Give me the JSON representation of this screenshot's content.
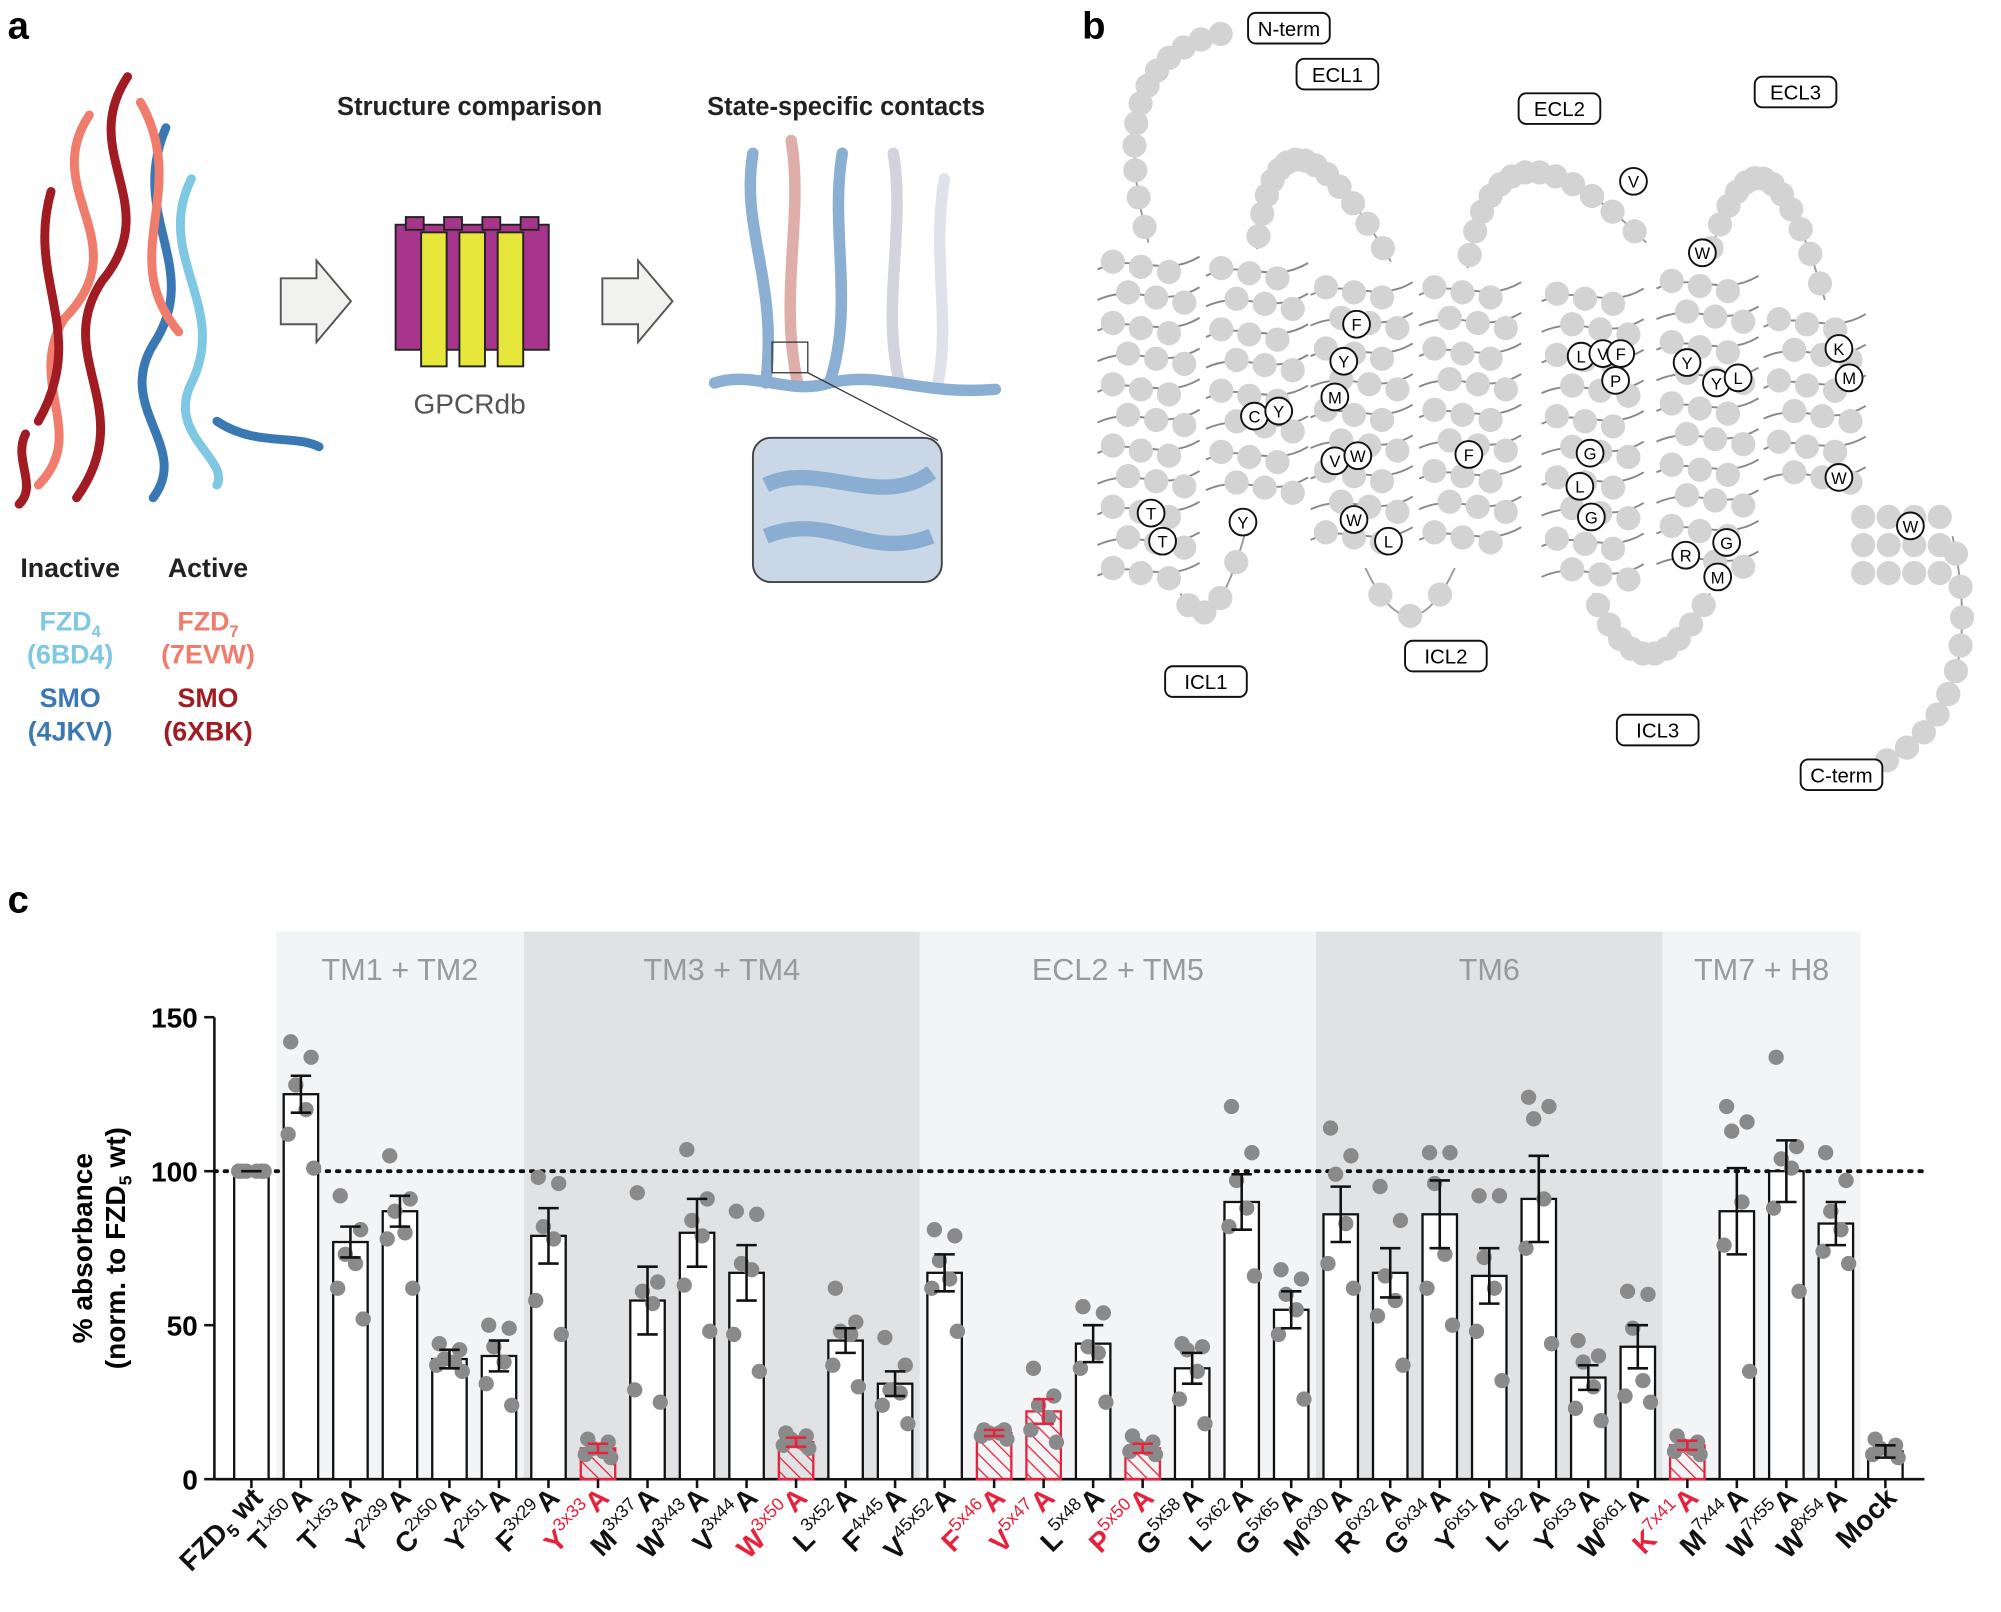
{
  "panel_a": {
    "label": "a",
    "headings": [
      "Structure comparison",
      "State-specific contacts"
    ],
    "tool": "GPCRdb",
    "legend": [
      {
        "title": "Inactive",
        "entries": [
          {
            "name": "FZD",
            "sub": "4",
            "id": "(6BD4)",
            "color": "#7ec8e3"
          },
          {
            "name": "SMO",
            "id": "(4JKV)",
            "color": "#3a78b4"
          }
        ]
      },
      {
        "title": "Active",
        "entries": [
          {
            "name": "FZD",
            "sub": "7",
            "id": "(7EVW)",
            "color": "#f07c6c"
          },
          {
            "name": "SMO",
            "id": "(6XBK)",
            "color": "#a01c22"
          }
        ]
      }
    ]
  },
  "panel_b": {
    "label": "b",
    "loops": [
      "N-term",
      "ECL1",
      "ECL2",
      "ECL3",
      "ICL1",
      "ICL2",
      "ICL3",
      "C-term"
    ],
    "highlighted": [
      "T",
      "T",
      "C",
      "Y",
      "Y",
      "F",
      "Y",
      "M",
      "V",
      "W",
      "W",
      "L",
      "F",
      "V",
      "L",
      "V",
      "F",
      "P",
      "G",
      "L",
      "G",
      "W",
      "Y",
      "Y",
      "L",
      "R",
      "G",
      "M",
      "K",
      "M",
      "W",
      "W"
    ]
  },
  "chart_data": {
    "type": "bar",
    "label": "c",
    "ylabel": [
      "% absorbance",
      "(norm. to FZD",
      "5",
      " wt)"
    ],
    "categories": [
      {
        "residue": "FZD",
        "sub": "5",
        "substitution": " wt"
      },
      {
        "residue": "T",
        "sup": "1x50",
        "substitution": "A"
      },
      {
        "residue": "T",
        "sup": "1x53",
        "substitution": "A"
      },
      {
        "residue": "Y",
        "sup": "2x39",
        "substitution": "A"
      },
      {
        "residue": "C",
        "sup": "2x50",
        "substitution": "A"
      },
      {
        "residue": "Y",
        "sup": "2x51",
        "substitution": "A"
      },
      {
        "residue": "F",
        "sup": "3x29",
        "substitution": "A"
      },
      {
        "residue": "Y",
        "sup": "3x33",
        "substitution": "A",
        "color": "#e8213c"
      },
      {
        "residue": "M",
        "sup": "3x37",
        "substitution": "A"
      },
      {
        "residue": "W",
        "sup": "3x43",
        "substitution": "A"
      },
      {
        "residue": "V",
        "sup": "3x44",
        "substitution": "A"
      },
      {
        "residue": "W",
        "sup": "3x50",
        "substitution": "A",
        "color": "#e8213c"
      },
      {
        "residue": "L",
        "sup": "3x52",
        "substitution": "A"
      },
      {
        "residue": "F",
        "sup": "4x45",
        "substitution": "A"
      },
      {
        "residue": "V",
        "sup": "45x52",
        "substitution": "A"
      },
      {
        "residue": "F",
        "sup": "5x46",
        "substitution": "A",
        "color": "#e8213c"
      },
      {
        "residue": "V",
        "sup": "5x47",
        "substitution": "A",
        "color": "#e8213c"
      },
      {
        "residue": "L",
        "sup": "5x48",
        "substitution": "A"
      },
      {
        "residue": "P",
        "sup": "5x50",
        "substitution": "A",
        "color": "#e8213c"
      },
      {
        "residue": "G",
        "sup": "5x58",
        "substitution": "A"
      },
      {
        "residue": "L",
        "sup": "5x62",
        "substitution": "A"
      },
      {
        "residue": "G",
        "sup": "5x65",
        "substitution": "A"
      },
      {
        "residue": "M",
        "sup": "6x30",
        "substitution": "A"
      },
      {
        "residue": "R",
        "sup": "6x32",
        "substitution": "A"
      },
      {
        "residue": "G",
        "sup": "6x34",
        "substitution": "A"
      },
      {
        "residue": "Y",
        "sup": "6x51",
        "substitution": "A"
      },
      {
        "residue": "L",
        "sup": "6x52",
        "substitution": "A"
      },
      {
        "residue": "Y",
        "sup": "6x53",
        "substitution": "A"
      },
      {
        "residue": "W",
        "sup": "6x61",
        "substitution": "A"
      },
      {
        "residue": "K",
        "sup": "7x41",
        "substitution": "A",
        "color": "#e8213c"
      },
      {
        "residue": "M",
        "sup": "7x44",
        "substitution": "A"
      },
      {
        "residue": "W",
        "sup": "7x55",
        "substitution": "A"
      },
      {
        "residue": "W",
        "sup": "8x54",
        "substitution": "A"
      },
      {
        "residue": "Mock"
      }
    ],
    "values": [
      100,
      125,
      77,
      87,
      39,
      40,
      79,
      10,
      58,
      80,
      67,
      12,
      45,
      31,
      67,
      15,
      22,
      44,
      10,
      36,
      90,
      55,
      86,
      67,
      86,
      66,
      91,
      33,
      43,
      11,
      87,
      100,
      83,
      9
    ],
    "errors": [
      0,
      6,
      5,
      5,
      3,
      5,
      9,
      1.5,
      11,
      11,
      9,
      1.5,
      4,
      4,
      6,
      1,
      4,
      6,
      1.5,
      5,
      9,
      6,
      9,
      8,
      11,
      9,
      14,
      4,
      7,
      1.5,
      14,
      10,
      7,
      2
    ],
    "points": [
      [
        100,
        100,
        100,
        100,
        100,
        100
      ],
      [
        142,
        137,
        128,
        120,
        112,
        101
      ],
      [
        92,
        81,
        73,
        70,
        62,
        52
      ],
      [
        105,
        91,
        87,
        80,
        78,
        62
      ],
      [
        44,
        42,
        39,
        38,
        37,
        35
      ],
      [
        50,
        49,
        43,
        38,
        31,
        24
      ],
      [
        98,
        96,
        82,
        78,
        58,
        47
      ],
      [
        13,
        12,
        10,
        9,
        8,
        7
      ],
      [
        93,
        64,
        61,
        57,
        29,
        25
      ],
      [
        107,
        91,
        84,
        79,
        63,
        48
      ],
      [
        87,
        86,
        70,
        68,
        47,
        35
      ],
      [
        15,
        14,
        13,
        12,
        11,
        10
      ],
      [
        62,
        51,
        48,
        47,
        37,
        30
      ],
      [
        46,
        37,
        29,
        28,
        24,
        18
      ],
      [
        81,
        79,
        71,
        65,
        62,
        48
      ],
      [
        16,
        16,
        15,
        15,
        14,
        13
      ],
      [
        36,
        27,
        24,
        20,
        16,
        12
      ],
      [
        56,
        54,
        43,
        41,
        36,
        25
      ],
      [
        14,
        12,
        11,
        10,
        9,
        8
      ],
      [
        44,
        43,
        42,
        35,
        26,
        18
      ],
      [
        121,
        106,
        97,
        88,
        82,
        66
      ],
      [
        68,
        65,
        60,
        55,
        47,
        26
      ],
      [
        114,
        105,
        99,
        83,
        70,
        62
      ],
      [
        95,
        84,
        66,
        58,
        53,
        37
      ],
      [
        106,
        106,
        96,
        73,
        62,
        50
      ],
      [
        92,
        92,
        72,
        62,
        48,
        32
      ],
      [
        124,
        121,
        117,
        91,
        75,
        44
      ],
      [
        45,
        40,
        38,
        30,
        23,
        19
      ],
      [
        61,
        60,
        49,
        32,
        27,
        25
      ],
      [
        14,
        12,
        11,
        10,
        9,
        8
      ],
      [
        121,
        116,
        113,
        90,
        76,
        35
      ],
      [
        137,
        108,
        104,
        101,
        88,
        61
      ],
      [
        106,
        97,
        87,
        81,
        74,
        70
      ],
      [
        13,
        11,
        10,
        9,
        8,
        7
      ]
    ],
    "groups": [
      {
        "name": "TM1 + TM2",
        "range": [
          1,
          5
        ],
        "color": "#f3f4f6"
      },
      {
        "name": "TM3 + TM4",
        "range": [
          6,
          13
        ],
        "color": "#e1e2e4"
      },
      {
        "name": "ECL2 + TM5",
        "range": [
          14,
          21
        ],
        "color": "#f3f4f6"
      },
      {
        "name": "TM6",
        "range": [
          22,
          28
        ],
        "color": "#e1e2e4"
      },
      {
        "name": "TM7 + H8",
        "range": [
          29,
          32
        ],
        "color": "#f3f4f6"
      }
    ],
    "ylim": [
      0,
      150
    ],
    "yticks": [
      0,
      50,
      100,
      150
    ],
    "refline": 100,
    "bar_color": "#ffffff",
    "point_color": "#8a8a8a"
  }
}
